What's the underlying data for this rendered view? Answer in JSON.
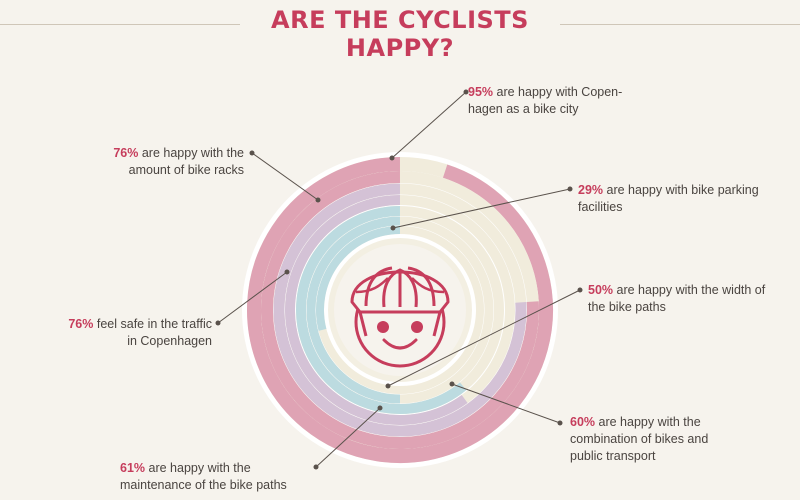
{
  "title": "ARE THE CYCLISTS HAPPY?",
  "colors": {
    "accent": "#c63d5c",
    "ring_pink": "#dfa3b4",
    "ring_lilac": "#d4c2d6",
    "ring_blue": "#bcdbe0",
    "remainder": "#f1ecdc",
    "background": "#f6f3ed"
  },
  "chart_data": {
    "type": "radial-bar",
    "title": "ARE THE CYCLISTS HAPPY?",
    "series": [
      {
        "value": 95,
        "label_pct": "95%",
        "label_text": "are happy with Copen-\nhagen as a bike city"
      },
      {
        "value": 76,
        "label_pct": "76%",
        "label_text": "are happy with the\namount of bike racks"
      },
      {
        "value": 76,
        "label_pct": "76%",
        "label_text": "feel safe in the traffic\nin Copenhagen"
      },
      {
        "value": 60,
        "label_pct": "60%",
        "label_text": "are happy with the\ncombination of bikes and\npublic transport"
      },
      {
        "value": 61,
        "label_pct": "61%",
        "label_text": "are happy with the\nmaintenance of the bike paths"
      },
      {
        "value": 50,
        "label_pct": "50%",
        "label_text": "are happy with the width of\nthe bike paths"
      },
      {
        "value": 29,
        "label_pct": "29%",
        "label_text": "are happy with bike parking\nfacilities"
      }
    ],
    "unit": "%",
    "max": 100,
    "center_icon": "cyclist-helmet-smiley-icon"
  }
}
